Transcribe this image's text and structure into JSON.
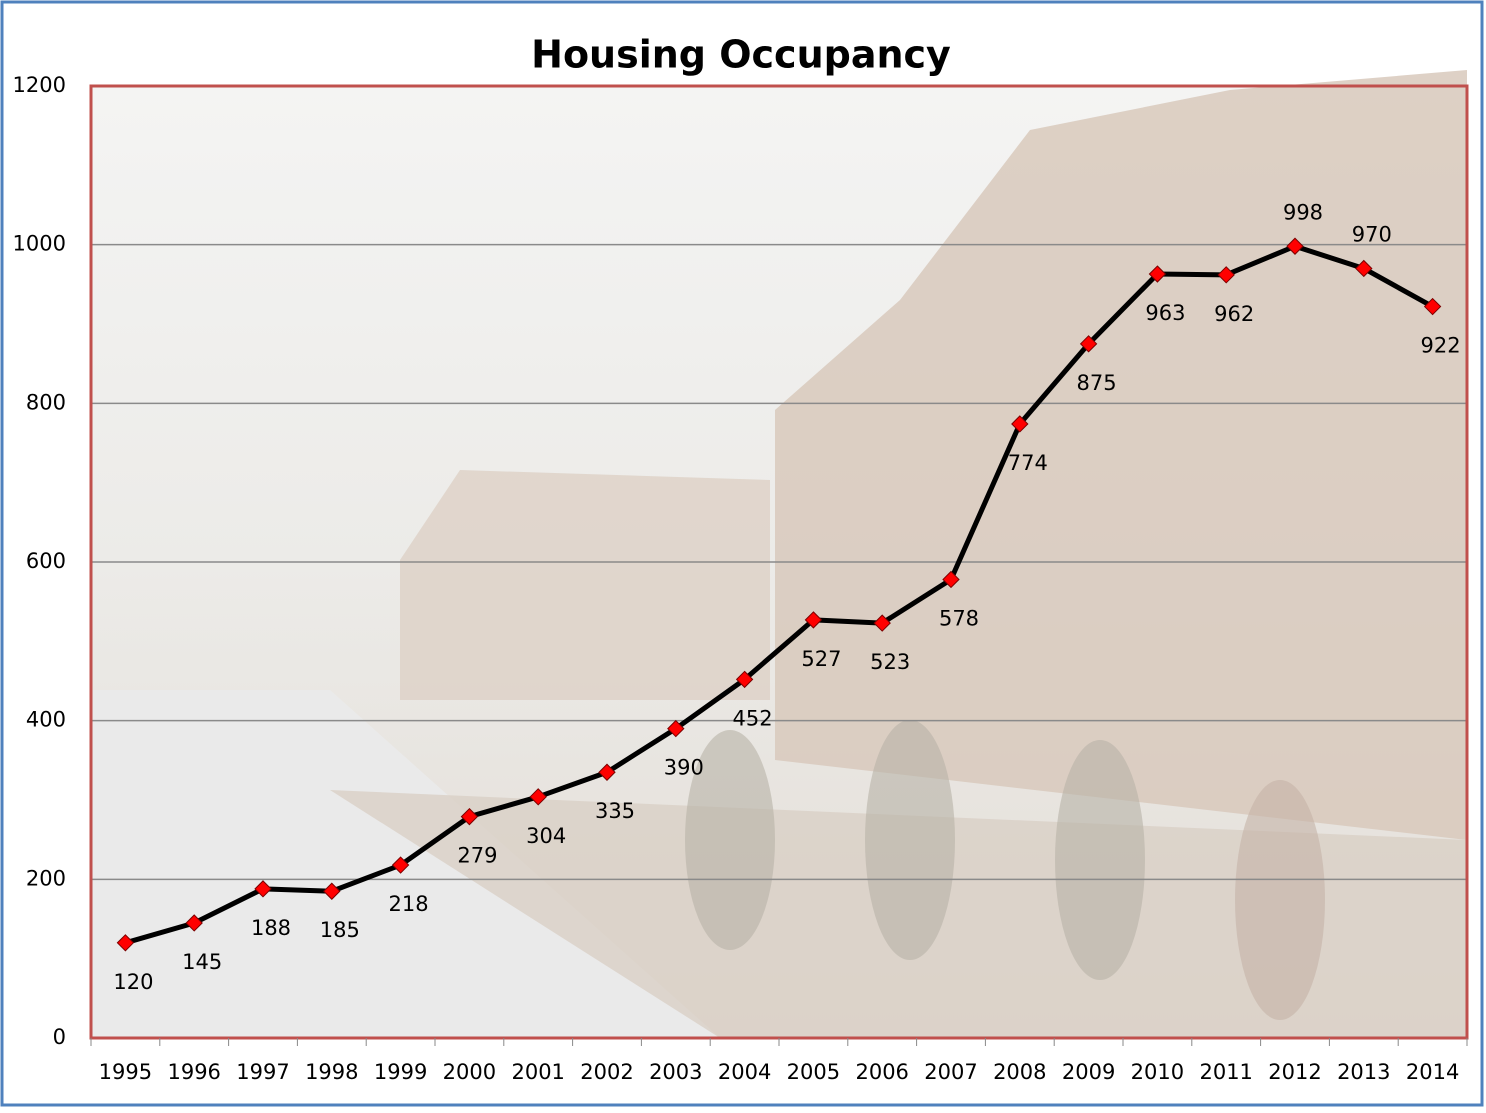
{
  "chart_data": {
    "type": "line",
    "title": "Housing Occupancy",
    "categories": [
      "1995",
      "1996",
      "1997",
      "1998",
      "1999",
      "2000",
      "2001",
      "2002",
      "2003",
      "2004",
      "2005",
      "2006",
      "2007",
      "2008",
      "2009",
      "2010",
      "2011",
      "2012",
      "2013",
      "2014"
    ],
    "series": [
      {
        "color": "#000000",
        "marker_color": "#ff0000",
        "values": [
          120,
          145,
          188,
          185,
          218,
          279,
          304,
          335,
          390,
          452,
          527,
          523,
          578,
          774,
          875,
          963,
          962,
          998,
          970,
          922
        ]
      }
    ],
    "ylim": [
      0,
      1200
    ],
    "yticks": [
      0,
      200,
      400,
      600,
      800,
      1000,
      1200
    ],
    "grid": true
  }
}
